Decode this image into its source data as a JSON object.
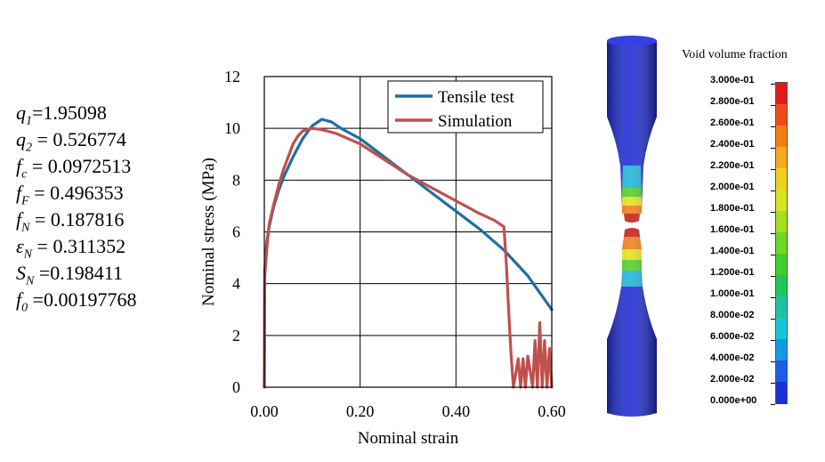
{
  "parameters": [
    {
      "sym": "q",
      "sub": "1",
      "eq": "=",
      "value": "1.95098"
    },
    {
      "sym": "q",
      "sub": "2",
      "eq": " = ",
      "value": "0.526774"
    },
    {
      "sym": "f",
      "sub": "c",
      "eq": " = ",
      "value": "0.0972513"
    },
    {
      "sym": "f",
      "sub": "F",
      "eq": " = ",
      "value": "0.496353"
    },
    {
      "sym": "f",
      "sub": "N",
      "eq": " = ",
      "value": "0.187816"
    },
    {
      "sym": "ε",
      "sub": "N",
      "eq": " = ",
      "value": "0.311352"
    },
    {
      "sym": "S",
      "sub": "N",
      "eq": " =",
      "value": "0.198411"
    },
    {
      "sym": "f",
      "sub": "0",
      "eq": " =",
      "value": "0.00197768"
    }
  ],
  "chart_data": {
    "type": "line",
    "title": "",
    "xlabel": "Nominal strain",
    "ylabel": "Nominal stress (MPa)",
    "xlim": [
      0,
      0.6
    ],
    "ylim": [
      0,
      12
    ],
    "xticks": [
      0,
      0.2,
      0.4,
      0.6
    ],
    "xtick_labels": [
      "0.00",
      "0.20",
      "0.40",
      "0.60"
    ],
    "yticks": [
      0,
      2,
      4,
      6,
      8,
      10,
      12
    ],
    "ytick_labels": [
      "0",
      "2",
      "4",
      "6",
      "8",
      "10",
      "12"
    ],
    "grid": true,
    "legend_position": "top-right",
    "series": [
      {
        "name": "Tensile test",
        "color": "#1f6fa3",
        "x": [
          0,
          0.001,
          0.005,
          0.01,
          0.02,
          0.03,
          0.04,
          0.06,
          0.08,
          0.1,
          0.12,
          0.14,
          0.16,
          0.18,
          0.2,
          0.25,
          0.3,
          0.35,
          0.4,
          0.45,
          0.5,
          0.55,
          0.6
        ],
        "y": [
          0,
          4.5,
          5.6,
          6.2,
          7.0,
          7.6,
          8.1,
          8.9,
          9.6,
          10.1,
          10.35,
          10.25,
          10.0,
          9.8,
          9.6,
          8.9,
          8.2,
          7.5,
          6.8,
          6.1,
          5.3,
          4.3,
          3.0
        ]
      },
      {
        "name": "Simulation",
        "color": "#c0504d",
        "x": [
          0,
          0.001,
          0.005,
          0.01,
          0.02,
          0.03,
          0.04,
          0.05,
          0.06,
          0.07,
          0.08,
          0.1,
          0.12,
          0.15,
          0.2,
          0.25,
          0.3,
          0.35,
          0.4,
          0.45,
          0.48,
          0.5,
          0.505,
          0.51,
          0.515,
          0.52,
          0.53,
          0.535,
          0.54,
          0.545,
          0.55,
          0.56,
          0.565,
          0.57,
          0.575,
          0.58,
          0.585,
          0.59,
          0.595,
          0.6
        ],
        "y": [
          0,
          4.3,
          5.3,
          6.3,
          7.1,
          7.8,
          8.4,
          8.9,
          9.4,
          9.7,
          9.9,
          10.0,
          9.95,
          9.8,
          9.4,
          8.8,
          8.2,
          7.7,
          7.2,
          6.7,
          6.45,
          6.2,
          4.8,
          3.0,
          1.3,
          0,
          1.1,
          0,
          1.1,
          0,
          1.2,
          0,
          1.8,
          0,
          2.5,
          0,
          1.8,
          0,
          1.5,
          0
        ]
      }
    ]
  },
  "specimen_label": "",
  "colorbar": {
    "title": "Void volume fraction",
    "labels": [
      "3.000e-01",
      "2.800e-01",
      "2.600e-01",
      "2.400e-01",
      "2.200e-01",
      "2.000e-01",
      "1.800e-01",
      "1.600e-01",
      "1.400e-01",
      "1.200e-01",
      "1.000e-01",
      "8.000e-02",
      "6.000e-02",
      "4.000e-02",
      "2.000e-02",
      "0.000e+00"
    ],
    "colors": [
      "#e31a1c",
      "#f04a1a",
      "#f77e16",
      "#f5a91b",
      "#f0d01e",
      "#d6e51f",
      "#a2e01f",
      "#6fd823",
      "#3ecf2c",
      "#1ec75a",
      "#1bc3a2",
      "#15c6d9",
      "#1598e8",
      "#1a5fe8",
      "#1a2fd9"
    ]
  }
}
